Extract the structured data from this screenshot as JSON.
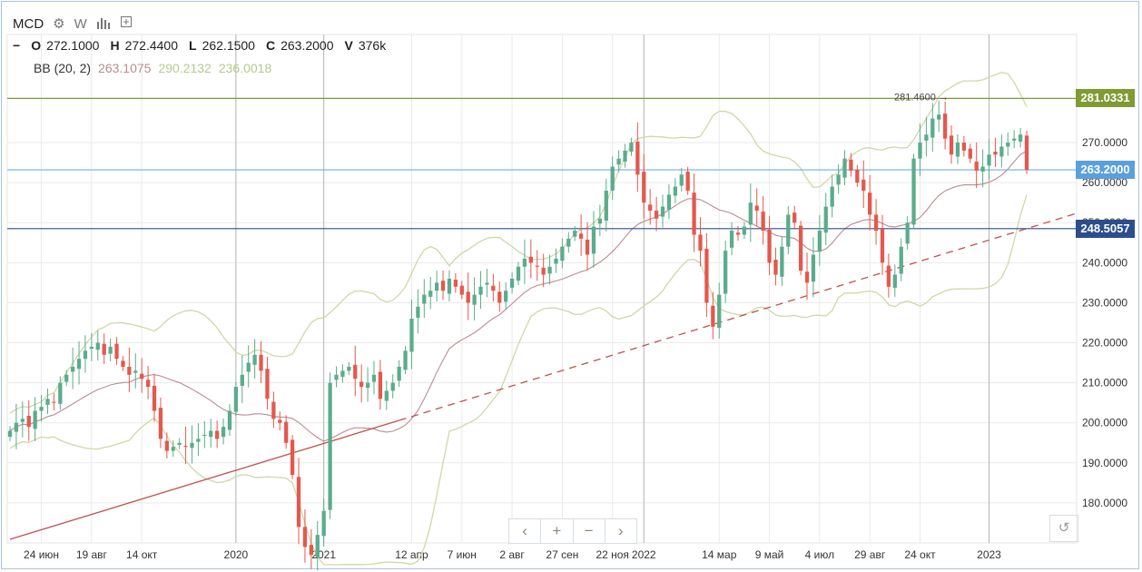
{
  "header": {
    "symbol": "MCD",
    "ohlcv": [
      {
        "key": "O",
        "value": "272.1000"
      },
      {
        "key": "H",
        "value": "272.4400"
      },
      {
        "key": "L",
        "value": "262.1500"
      },
      {
        "key": "C",
        "value": "263.2000"
      },
      {
        "key": "V",
        "value": "376k"
      }
    ],
    "bb_label": "BB (20, 2)",
    "bb_mid": "263.1075",
    "bb_upper": "290.2132",
    "bb_lower": "236.0018"
  },
  "toolbar": {
    "settings_icon": "gear-icon",
    "w_label": "W",
    "bars_icon": "bar-chart-icon",
    "add_icon": "add-compare-icon"
  },
  "colors": {
    "up": "#5aac8c",
    "down": "#e5584c",
    "bb_mid": "#b98c91",
    "bb_band": "#cfd8a6",
    "trend": "#c0504d",
    "hline_green": "#7f9b32",
    "hline_blue": "#6faee1",
    "hline_navy": "#2d4d8c",
    "grid": "#eaeaea"
  },
  "chart_data": {
    "type": "candlestick",
    "y_range": [
      170,
      297
    ],
    "y_ticks": [
      "180.0000",
      "190.0000",
      "200.0000",
      "210.0000",
      "220.0000",
      "230.0000",
      "240.0000",
      "250.0000",
      "260.0000",
      "270.0000"
    ],
    "y_tick_values": [
      180,
      190,
      200,
      210,
      220,
      230,
      240,
      250,
      260,
      270
    ],
    "x_labels": [
      "24 июн",
      "19 авг",
      "14 окт",
      "2020",
      "2021",
      "12 апр",
      "7 июн",
      "2 авг",
      "27 сен",
      "22 ноя",
      "2022",
      "14 мар",
      "9 май",
      "4 июл",
      "29 авг",
      "24 окт",
      "2023"
    ],
    "x_label_bar_index": [
      5,
      13,
      21,
      36,
      50,
      64,
      72,
      80,
      88,
      96,
      101,
      113,
      121,
      129,
      137,
      145,
      156
    ],
    "year_divider_bar_index": [
      36,
      50,
      101,
      156
    ],
    "bars_count": 163,
    "horizontal_lines": [
      {
        "value": 281.0331,
        "label": "281.0331",
        "color": "green"
      },
      {
        "value": 263.2,
        "label": "263.2000",
        "color": "blue"
      },
      {
        "value": 248.5057,
        "label": "248.5057",
        "color": "navy"
      }
    ],
    "annotation": {
      "label": "281.4600 →",
      "value": 281.46,
      "bar_index": 151
    },
    "trendline": {
      "from": [
        0,
        170.9
      ],
      "solid_until_bar": 62,
      "to": [
        163,
        249.0
      ]
    },
    "closes": [
      198,
      200,
      201,
      199,
      203,
      204,
      206,
      205,
      210,
      212,
      214,
      216,
      218,
      219,
      220,
      217,
      219,
      216,
      214,
      212,
      213,
      211,
      209,
      203,
      196,
      193,
      194,
      195,
      194,
      195,
      196,
      197,
      198,
      196,
      199,
      203,
      209,
      212,
      215,
      217,
      213,
      206,
      201,
      200,
      195,
      187,
      174,
      169,
      167,
      172,
      178,
      210,
      212,
      213,
      214,
      211,
      209,
      210,
      212,
      206,
      208,
      210,
      214,
      218,
      226,
      229,
      232,
      233,
      235,
      233,
      236,
      234,
      232,
      230,
      232,
      234,
      235,
      233,
      230,
      233,
      236,
      239,
      241,
      240,
      239,
      237,
      239,
      241,
      244,
      246,
      248,
      246,
      242,
      249,
      251,
      258,
      264,
      266,
      268,
      270,
      262,
      255,
      253,
      251,
      254,
      257,
      259,
      262,
      258,
      247,
      243,
      230,
      224,
      232,
      243,
      248,
      247,
      249,
      255,
      253,
      248,
      240,
      237,
      244,
      252,
      250,
      238,
      235,
      242,
      248,
      254,
      259,
      262,
      266,
      263,
      260,
      258,
      252,
      248,
      240,
      234,
      237,
      244,
      250,
      266,
      270,
      272,
      276,
      277,
      271,
      267,
      270,
      268,
      266,
      263,
      264,
      267,
      267,
      269,
      270,
      271,
      272,
      263.2
    ],
    "bb_mid_start": [
      185,
      199
    ],
    "bb_upper_start": [
      192,
      205
    ],
    "bb_lower_start": [
      168,
      194
    ]
  },
  "nav": {
    "prev": "‹",
    "zoom_in": "+",
    "zoom_out": "−",
    "next": "›",
    "reset": "↺"
  }
}
